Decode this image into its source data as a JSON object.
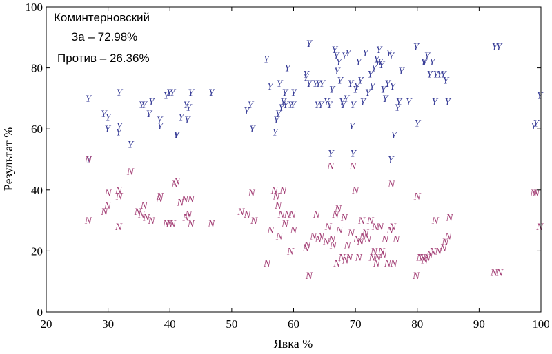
{
  "chart_data": {
    "type": "scatter",
    "title": "",
    "xlabel": "Явка %",
    "ylabel": "Результат %",
    "xlim": [
      20,
      100
    ],
    "ylim": [
      0,
      100
    ],
    "x_ticks": [
      20,
      30,
      40,
      50,
      60,
      70,
      80,
      90,
      100
    ],
    "y_ticks": [
      0,
      20,
      40,
      60,
      80,
      100
    ],
    "grid": false,
    "annotations": {
      "district": "Коминтерновский",
      "for_line": "За – 72.98%",
      "against_line": "Против – 26.36%"
    },
    "series": [
      {
        "marker": "Y",
        "color": "#3a3f98",
        "points": [
          [
            26.8,
            70
          ],
          [
            26.8,
            50
          ],
          [
            29.3,
            65
          ],
          [
            30,
            64
          ],
          [
            29.9,
            60
          ],
          [
            31.8,
            72
          ],
          [
            31.8,
            61
          ],
          [
            31.7,
            59
          ],
          [
            33.6,
            55
          ],
          [
            35.4,
            68
          ],
          [
            35.8,
            68
          ],
          [
            36.6,
            65
          ],
          [
            37,
            69
          ],
          [
            38.3,
            63
          ],
          [
            38.4,
            61
          ],
          [
            39.4,
            71
          ],
          [
            39.9,
            72
          ],
          [
            40.4,
            72
          ],
          [
            41.1,
            58
          ],
          [
            41,
            58
          ],
          [
            41.8,
            64
          ],
          [
            42.6,
            68
          ],
          [
            42.8,
            63
          ],
          [
            43,
            67
          ],
          [
            43.4,
            72
          ],
          [
            46.7,
            72
          ],
          [
            52.4,
            66
          ],
          [
            53,
            68
          ],
          [
            53.3,
            60
          ],
          [
            55.6,
            83
          ],
          [
            56.2,
            74
          ],
          [
            57,
            59
          ],
          [
            57.2,
            63
          ],
          [
            57.5,
            65
          ],
          [
            57.7,
            75
          ],
          [
            58,
            67
          ],
          [
            58.3,
            69
          ],
          [
            58.7,
            68
          ],
          [
            58.6,
            72
          ],
          [
            59,
            80
          ],
          [
            59.5,
            68
          ],
          [
            59.9,
            68
          ],
          [
            60,
            72
          ],
          [
            62,
            77
          ],
          [
            62,
            78
          ],
          [
            62.5,
            88
          ],
          [
            62.5,
            75
          ],
          [
            63.5,
            75
          ],
          [
            63.8,
            68
          ],
          [
            64,
            75
          ],
          [
            64.4,
            68
          ],
          [
            64.6,
            75
          ],
          [
            65.3,
            69
          ],
          [
            65.8,
            68
          ],
          [
            66,
            52
          ],
          [
            66.2,
            73
          ],
          [
            66.6,
            86
          ],
          [
            66.9,
            84
          ],
          [
            67,
            79
          ],
          [
            67.3,
            82
          ],
          [
            67.5,
            76
          ],
          [
            67.8,
            69
          ],
          [
            68,
            68
          ],
          [
            68.2,
            84
          ],
          [
            68.5,
            70
          ],
          [
            68.8,
            85
          ],
          [
            69.2,
            75
          ],
          [
            69.4,
            61
          ],
          [
            69.6,
            52
          ],
          [
            69.6,
            68
          ],
          [
            70,
            73
          ],
          [
            70.2,
            74
          ],
          [
            70.5,
            82
          ],
          [
            70.8,
            76
          ],
          [
            71.2,
            69
          ],
          [
            71.6,
            85
          ],
          [
            72,
            72
          ],
          [
            72.4,
            78
          ],
          [
            72.7,
            74
          ],
          [
            73,
            80
          ],
          [
            73.4,
            83
          ],
          [
            73.6,
            82
          ],
          [
            73.8,
            86
          ],
          [
            74,
            82
          ],
          [
            74.2,
            81
          ],
          [
            74.5,
            73
          ],
          [
            74.8,
            70
          ],
          [
            75.2,
            75
          ],
          [
            75.4,
            85
          ],
          [
            75.7,
            50
          ],
          [
            75.8,
            84
          ],
          [
            76,
            74
          ],
          [
            76.2,
            58
          ],
          [
            76.8,
            67
          ],
          [
            77,
            69
          ],
          [
            77.4,
            79
          ],
          [
            78.6,
            69
          ],
          [
            79.8,
            87
          ],
          [
            80,
            62
          ],
          [
            81,
            82
          ],
          [
            81.2,
            82
          ],
          [
            81.6,
            84
          ],
          [
            82,
            78
          ],
          [
            82.4,
            82
          ],
          [
            82.8,
            69
          ],
          [
            83,
            78
          ],
          [
            83.6,
            78
          ],
          [
            84.2,
            78
          ],
          [
            84.6,
            76
          ],
          [
            84.9,
            69
          ],
          [
            92.5,
            87
          ],
          [
            93.2,
            87
          ],
          [
            98.8,
            61
          ],
          [
            99.2,
            62
          ],
          [
            99.8,
            71
          ]
        ]
      },
      {
        "marker": "N",
        "color": "#a54378",
        "points": [
          [
            26.8,
            30
          ],
          [
            26.8,
            50
          ],
          [
            29.4,
            33
          ],
          [
            29.9,
            35
          ],
          [
            30,
            39
          ],
          [
            31.7,
            40
          ],
          [
            31.8,
            38
          ],
          [
            31.7,
            28
          ],
          [
            33.6,
            46
          ],
          [
            34.8,
            33
          ],
          [
            35.4,
            32
          ],
          [
            35.8,
            35
          ],
          [
            36.2,
            31
          ],
          [
            37,
            30
          ],
          [
            38.3,
            37
          ],
          [
            38.4,
            38
          ],
          [
            39.4,
            29
          ],
          [
            39.9,
            29
          ],
          [
            40.4,
            29
          ],
          [
            40.8,
            42
          ],
          [
            41.1,
            43
          ],
          [
            41.7,
            36
          ],
          [
            42.4,
            37
          ],
          [
            42.6,
            31
          ],
          [
            43,
            32
          ],
          [
            43.4,
            37
          ],
          [
            43.4,
            29
          ],
          [
            46.7,
            29
          ],
          [
            51.5,
            33
          ],
          [
            52.5,
            32
          ],
          [
            53.2,
            39
          ],
          [
            53.6,
            30
          ],
          [
            55.7,
            16
          ],
          [
            56.3,
            27
          ],
          [
            56.9,
            40
          ],
          [
            57.2,
            38
          ],
          [
            57.5,
            35
          ],
          [
            57.7,
            25
          ],
          [
            58,
            32
          ],
          [
            58.3,
            40
          ],
          [
            58.6,
            29
          ],
          [
            59,
            32
          ],
          [
            59.5,
            20
          ],
          [
            59.8,
            32
          ],
          [
            60,
            27
          ],
          [
            62,
            21
          ],
          [
            62.2,
            22
          ],
          [
            62.5,
            12
          ],
          [
            63.2,
            25
          ],
          [
            63.7,
            32
          ],
          [
            64,
            24
          ],
          [
            64.4,
            25
          ],
          [
            65.3,
            23
          ],
          [
            65.6,
            28
          ],
          [
            66,
            48
          ],
          [
            66.2,
            24
          ],
          [
            66.4,
            22
          ],
          [
            66.8,
            32
          ],
          [
            67,
            16
          ],
          [
            67.2,
            34
          ],
          [
            67.4,
            27
          ],
          [
            67.8,
            18
          ],
          [
            68.2,
            31
          ],
          [
            68.4,
            17
          ],
          [
            68.7,
            22
          ],
          [
            69,
            18
          ],
          [
            69.3,
            26
          ],
          [
            69.6,
            48
          ],
          [
            70,
            40
          ],
          [
            70.2,
            24
          ],
          [
            70.5,
            18
          ],
          [
            70.8,
            23
          ],
          [
            71,
            30
          ],
          [
            71.2,
            25
          ],
          [
            71.6,
            26
          ],
          [
            72,
            24
          ],
          [
            72.4,
            30
          ],
          [
            72.7,
            18
          ],
          [
            73,
            20
          ],
          [
            73.2,
            28
          ],
          [
            73.4,
            16
          ],
          [
            73.6,
            18
          ],
          [
            74,
            28
          ],
          [
            74.2,
            20
          ],
          [
            74.5,
            19
          ],
          [
            74.8,
            24
          ],
          [
            75.2,
            16
          ],
          [
            75.6,
            27
          ],
          [
            75.8,
            42
          ],
          [
            76,
            28
          ],
          [
            76.2,
            16
          ],
          [
            76.6,
            24
          ],
          [
            79.8,
            12
          ],
          [
            80,
            38
          ],
          [
            80.4,
            18
          ],
          [
            80.8,
            18
          ],
          [
            81.2,
            17
          ],
          [
            81.6,
            18
          ],
          [
            82,
            19
          ],
          [
            82.5,
            20
          ],
          [
            82.9,
            30
          ],
          [
            83.4,
            20
          ],
          [
            84.2,
            21
          ],
          [
            84.5,
            23
          ],
          [
            85,
            25
          ],
          [
            85.2,
            31
          ],
          [
            92.4,
            13
          ],
          [
            93.3,
            13
          ],
          [
            98.8,
            39
          ],
          [
            99.2,
            39
          ],
          [
            99.8,
            28
          ]
        ]
      }
    ]
  }
}
